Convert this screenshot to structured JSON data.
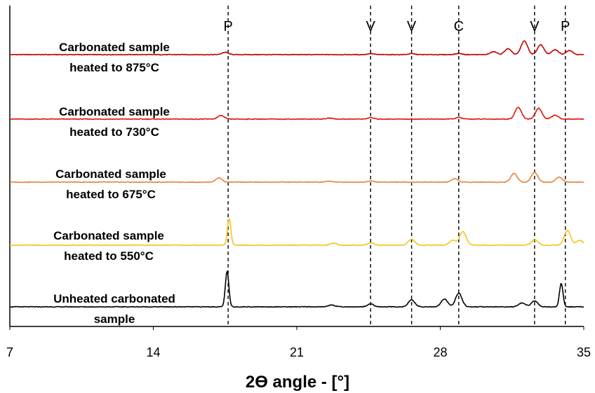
{
  "chart_data": {
    "type": "line",
    "title": "",
    "xlabel": "2Ɵ angle - [°]",
    "ylabel": "",
    "xlim": [
      7,
      35
    ],
    "x_ticks": [
      "7",
      "14",
      "21",
      "28",
      "35"
    ],
    "grid": false,
    "stacked_offset_plot": true,
    "series": [
      {
        "name": "Carbonated sample\nheated to 875°C",
        "color": "#C00000",
        "peaks": [
          {
            "x": 17.5,
            "h": 0.12
          },
          {
            "x": 24.6,
            "h": 0.05
          },
          {
            "x": 26.6,
            "h": 0.05
          },
          {
            "x": 28.9,
            "h": 0.06
          },
          {
            "x": 30.6,
            "h": 0.15
          },
          {
            "x": 31.3,
            "h": 0.3
          },
          {
            "x": 32.1,
            "h": 0.7
          },
          {
            "x": 32.9,
            "h": 0.5
          },
          {
            "x": 33.6,
            "h": 0.25
          },
          {
            "x": 34.3,
            "h": 0.22
          }
        ]
      },
      {
        "name": "Carbonated sample\nheated to 730°C",
        "color": "#E0140C",
        "peaks": [
          {
            "x": 17.3,
            "h": 0.18
          },
          {
            "x": 22.6,
            "h": 0.05
          },
          {
            "x": 24.6,
            "h": 0.07
          },
          {
            "x": 28.9,
            "h": 0.08
          },
          {
            "x": 31.8,
            "h": 0.6
          },
          {
            "x": 32.8,
            "h": 0.55
          },
          {
            "x": 33.6,
            "h": 0.2
          }
        ]
      },
      {
        "name": "Carbonated sample\nheated to 675°C",
        "color": "#E8823C",
        "peaks": [
          {
            "x": 17.2,
            "h": 0.22
          },
          {
            "x": 22.6,
            "h": 0.05
          },
          {
            "x": 24.6,
            "h": 0.06
          },
          {
            "x": 28.7,
            "h": 0.18
          },
          {
            "x": 31.6,
            "h": 0.45
          },
          {
            "x": 32.6,
            "h": 0.5
          },
          {
            "x": 33.8,
            "h": 0.25
          }
        ]
      },
      {
        "name": "Carbonated sample\nheated to 550°C",
        "color": "#F2C51A",
        "peaks": [
          {
            "x": 17.7,
            "h": 1.35
          },
          {
            "x": 22.8,
            "h": 0.1
          },
          {
            "x": 24.6,
            "h": 0.12
          },
          {
            "x": 26.6,
            "h": 0.3
          },
          {
            "x": 28.6,
            "h": 0.25
          },
          {
            "x": 29.1,
            "h": 0.7
          },
          {
            "x": 32.6,
            "h": 0.28
          },
          {
            "x": 34.2,
            "h": 0.75
          },
          {
            "x": 34.8,
            "h": 0.25
          }
        ]
      },
      {
        "name": "Unheated carbonated\nsample",
        "color": "#000000",
        "peaks": [
          {
            "x": 17.6,
            "h": 1.8
          },
          {
            "x": 22.7,
            "h": 0.1
          },
          {
            "x": 24.6,
            "h": 0.15
          },
          {
            "x": 26.6,
            "h": 0.35
          },
          {
            "x": 28.2,
            "h": 0.4
          },
          {
            "x": 28.9,
            "h": 0.7
          },
          {
            "x": 32.0,
            "h": 0.2
          },
          {
            "x": 32.6,
            "h": 0.3
          },
          {
            "x": 33.9,
            "h": 1.2
          }
        ]
      }
    ],
    "phase_markers": [
      {
        "label": "P",
        "x": 17.65
      },
      {
        "label": "V",
        "x": 24.6
      },
      {
        "label": "V",
        "x": 26.6
      },
      {
        "label": "C",
        "x": 28.9
      },
      {
        "label": "V",
        "x": 32.6
      },
      {
        "label": "P",
        "x": 34.1
      }
    ]
  }
}
